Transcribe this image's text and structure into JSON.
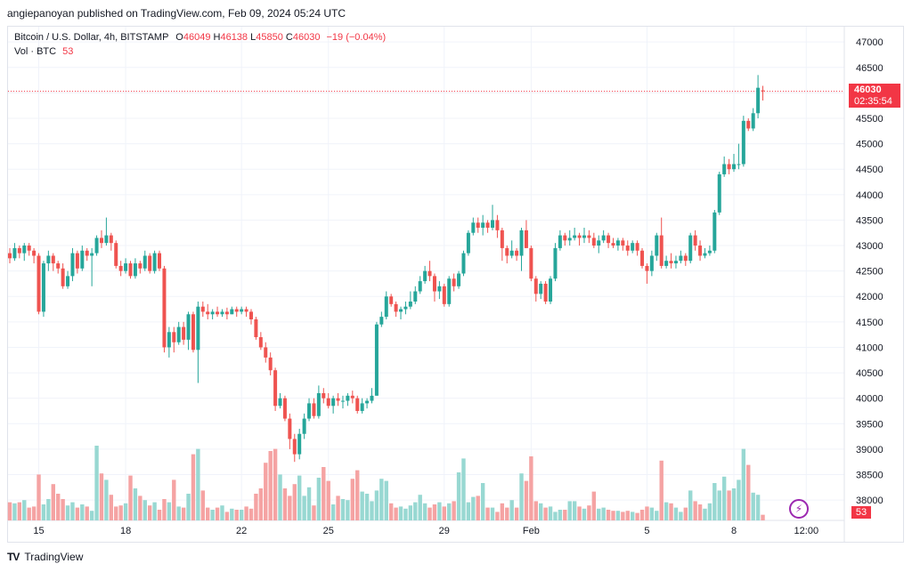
{
  "header": {
    "published_line": "angiepanoyan published on TradingView.com, Feb 09, 2024 05:24 UTC"
  },
  "legend": {
    "symbol": "Bitcoin / U.S. Dollar, 4h, BITSTAMP",
    "o_label": "O",
    "o_value": "46049",
    "h_label": "H",
    "h_value": "46138",
    "l_label": "L",
    "l_value": "45850",
    "c_label": "C",
    "c_value": "46030",
    "change": "−19 (−0.04%)",
    "vol_label": "Vol · BTC",
    "vol_value": "53"
  },
  "price_tag": {
    "price": "46030",
    "countdown": "02:35:54"
  },
  "vol_tag": "53",
  "footer": {
    "brand": "TradingView",
    "logo": "TV"
  },
  "colors": {
    "up": "#26a69a",
    "down": "#ef5350",
    "vol_up": "#98d8d2",
    "vol_down": "#f5a3a3",
    "accent": "#f23645"
  },
  "chart_data": {
    "type": "candlestick",
    "title": "Bitcoin / U.S. Dollar, 4h, BITSTAMP",
    "ylim": [
      37600,
      47300
    ],
    "y_ticks": [
      "47000",
      "46500",
      "46000",
      "45500",
      "45000",
      "44500",
      "44000",
      "43500",
      "43000",
      "42500",
      "42000",
      "41500",
      "41000",
      "40500",
      "40000",
      "39500",
      "39000",
      "38500",
      "38000"
    ],
    "y_tick_values": [
      47000,
      46500,
      46000,
      45500,
      45000,
      44500,
      44000,
      43500,
      43000,
      42500,
      42000,
      41500,
      41000,
      40500,
      40000,
      39500,
      39000,
      38500,
      38000
    ],
    "x_ticks": [
      {
        "label": "15",
        "index": 6
      },
      {
        "label": "18",
        "index": 24
      },
      {
        "label": "22",
        "index": 48
      },
      {
        "label": "25",
        "index": 66
      },
      {
        "label": "29",
        "index": 90
      },
      {
        "label": "Feb",
        "index": 108
      },
      {
        "label": "5",
        "index": 132
      },
      {
        "label": "8",
        "index": 150
      },
      {
        "label": "12:00",
        "index": 165
      }
    ],
    "vol_max": 1000,
    "last_close": 46030,
    "candles": [
      [
        42850,
        42750,
        42950,
        42650,
        170
      ],
      [
        42750,
        42950,
        43050,
        42700,
        160
      ],
      [
        42950,
        42850,
        43000,
        42750,
        170
      ],
      [
        42850,
        43000,
        43050,
        42700,
        190
      ],
      [
        43000,
        42900,
        43050,
        42800,
        120
      ],
      [
        42900,
        42800,
        42950,
        42650,
        130
      ],
      [
        42800,
        41700,
        42850,
        41650,
        430
      ],
      [
        41700,
        42650,
        42700,
        41600,
        150
      ],
      [
        42650,
        42800,
        42900,
        42500,
        200
      ],
      [
        42800,
        42650,
        42850,
        42500,
        340
      ],
      [
        42650,
        42550,
        42700,
        42450,
        250
      ],
      [
        42550,
        42200,
        42650,
        42150,
        200
      ],
      [
        42200,
        42400,
        42500,
        42150,
        140
      ],
      [
        42400,
        42850,
        42950,
        42300,
        170
      ],
      [
        42850,
        42550,
        42900,
        42450,
        120
      ],
      [
        42550,
        42900,
        43000,
        42500,
        150
      ],
      [
        42900,
        42800,
        42950,
        42700,
        130
      ],
      [
        42800,
        42850,
        42950,
        42200,
        90
      ],
      [
        42850,
        43150,
        43200,
        42800,
        700
      ],
      [
        43150,
        43050,
        43300,
        42950,
        440
      ],
      [
        43050,
        43200,
        43550,
        43000,
        380
      ],
      [
        43200,
        43050,
        43250,
        42900,
        240
      ],
      [
        43050,
        42600,
        43100,
        42550,
        130
      ],
      [
        42600,
        42500,
        42700,
        42400,
        140
      ],
      [
        42500,
        42650,
        42750,
        42450,
        160
      ],
      [
        42650,
        42400,
        42700,
        42350,
        420
      ],
      [
        42400,
        42650,
        42750,
        42350,
        300
      ],
      [
        42650,
        42550,
        42700,
        42450,
        230
      ],
      [
        42550,
        42800,
        42900,
        42500,
        190
      ],
      [
        42800,
        42500,
        42850,
        42450,
        140
      ],
      [
        42500,
        42850,
        42900,
        42450,
        170
      ],
      [
        42850,
        42550,
        42900,
        42500,
        100
      ],
      [
        42550,
        41000,
        42600,
        40900,
        200
      ],
      [
        41000,
        41300,
        41400,
        40800,
        170
      ],
      [
        41300,
        41100,
        41400,
        40900,
        380
      ],
      [
        41100,
        41400,
        41500,
        41050,
        130
      ],
      [
        41400,
        41150,
        41500,
        41050,
        120
      ],
      [
        41150,
        41650,
        41700,
        40950,
        250
      ],
      [
        41650,
        40950,
        41700,
        40900,
        620
      ],
      [
        40950,
        41800,
        41900,
        40300,
        670
      ],
      [
        41800,
        41700,
        41900,
        41600,
        280
      ],
      [
        41700,
        41650,
        41850,
        41550,
        120
      ],
      [
        41650,
        41700,
        41750,
        41550,
        100
      ],
      [
        41700,
        41650,
        41800,
        41600,
        120
      ],
      [
        41650,
        41700,
        41750,
        41600,
        140
      ],
      [
        41700,
        41650,
        41780,
        41550,
        80
      ],
      [
        41650,
        41750,
        41800,
        41650,
        110
      ],
      [
        41750,
        41700,
        41800,
        41600,
        100
      ],
      [
        41700,
        41750,
        41800,
        41650,
        100
      ],
      [
        41750,
        41700,
        41800,
        41600,
        130
      ],
      [
        41700,
        41550,
        41750,
        41450,
        110
      ],
      [
        41550,
        41200,
        41600,
        41150,
        250
      ],
      [
        41200,
        41000,
        41300,
        40950,
        300
      ],
      [
        41000,
        40800,
        41100,
        40700,
        540
      ],
      [
        40800,
        40550,
        40900,
        40450,
        650
      ],
      [
        40550,
        39850,
        40600,
        39750,
        670
      ],
      [
        39850,
        40000,
        40100,
        39800,
        430
      ],
      [
        40000,
        39600,
        40050,
        39550,
        300
      ],
      [
        39600,
        39200,
        39700,
        39000,
        230
      ],
      [
        39200,
        38900,
        39300,
        38750,
        340
      ],
      [
        38900,
        39300,
        39400,
        38800,
        420
      ],
      [
        39300,
        39600,
        39700,
        39200,
        230
      ],
      [
        39600,
        39900,
        40000,
        39550,
        310
      ],
      [
        39900,
        39650,
        40000,
        39600,
        140
      ],
      [
        39650,
        40100,
        40250,
        39600,
        400
      ],
      [
        40100,
        40000,
        40200,
        39900,
        500
      ],
      [
        40000,
        39850,
        40100,
        39800,
        370
      ],
      [
        39850,
        40000,
        40050,
        39700,
        150
      ],
      [
        40000,
        39950,
        40100,
        39850,
        230
      ],
      [
        39950,
        39950,
        40050,
        39800,
        200
      ],
      [
        39950,
        40050,
        40100,
        39850,
        190
      ],
      [
        40050,
        40000,
        40150,
        39900,
        390
      ],
      [
        40000,
        39750,
        40050,
        39700,
        470
      ],
      [
        39750,
        39900,
        40000,
        39700,
        270
      ],
      [
        39900,
        39950,
        40000,
        39800,
        250
      ],
      [
        39950,
        40050,
        40200,
        39900,
        180
      ],
      [
        40050,
        41450,
        41500,
        40050,
        280
      ],
      [
        41450,
        41600,
        41700,
        41400,
        390
      ],
      [
        41600,
        42000,
        42100,
        41550,
        370
      ],
      [
        42000,
        41850,
        42050,
        41800,
        160
      ],
      [
        41850,
        41700,
        41900,
        41600,
        120
      ],
      [
        41700,
        41750,
        41800,
        41550,
        130
      ],
      [
        41750,
        41800,
        41900,
        41650,
        110
      ],
      [
        41800,
        41900,
        42100,
        41750,
        140
      ],
      [
        41900,
        42100,
        42200,
        41850,
        170
      ],
      [
        42100,
        42300,
        42400,
        42050,
        240
      ],
      [
        42300,
        42500,
        42600,
        42250,
        160
      ],
      [
        42500,
        42400,
        42700,
        42300,
        120
      ],
      [
        42400,
        42100,
        42450,
        41900,
        150
      ],
      [
        42100,
        42200,
        42300,
        41950,
        170
      ],
      [
        42200,
        41850,
        42250,
        41800,
        130
      ],
      [
        41850,
        42350,
        42400,
        41800,
        160
      ],
      [
        42350,
        42200,
        42450,
        42100,
        180
      ],
      [
        42200,
        42450,
        42500,
        42150,
        450
      ],
      [
        42450,
        42850,
        42900,
        42400,
        580
      ],
      [
        42850,
        43250,
        43300,
        42800,
        170
      ],
      [
        43250,
        43450,
        43550,
        43200,
        220
      ],
      [
        43450,
        43350,
        43550,
        43250,
        230
      ],
      [
        43350,
        43450,
        43600,
        43200,
        350
      ],
      [
        43450,
        43350,
        43500,
        43250,
        120
      ],
      [
        43350,
        43500,
        43800,
        43300,
        120
      ],
      [
        43500,
        43300,
        43600,
        43150,
        80
      ],
      [
        43300,
        42950,
        43350,
        42700,
        160
      ],
      [
        42950,
        42800,
        43000,
        42650,
        120
      ],
      [
        42800,
        42900,
        43100,
        42750,
        190
      ],
      [
        42900,
        42800,
        42950,
        42700,
        120
      ],
      [
        42800,
        43300,
        43350,
        42500,
        440
      ],
      [
        43300,
        42950,
        43500,
        42950,
        370
      ],
      [
        42950,
        42350,
        43000,
        42300,
        600
      ],
      [
        42350,
        42050,
        42400,
        41900,
        180
      ],
      [
        42050,
        42250,
        42300,
        41950,
        160
      ],
      [
        42250,
        41900,
        42300,
        41850,
        120
      ],
      [
        41900,
        42350,
        42400,
        41850,
        130
      ],
      [
        42350,
        42950,
        43050,
        42300,
        80
      ],
      [
        42950,
        43200,
        43300,
        42900,
        100
      ],
      [
        43200,
        43100,
        43250,
        43000,
        100
      ],
      [
        43100,
        43150,
        43300,
        43000,
        180
      ],
      [
        43150,
        43200,
        43350,
        43100,
        180
      ],
      [
        43200,
        43150,
        43250,
        43000,
        130
      ],
      [
        43150,
        43200,
        43350,
        43050,
        110
      ],
      [
        43200,
        43150,
        43300,
        43050,
        140
      ],
      [
        43150,
        43000,
        43250,
        42950,
        270
      ],
      [
        43000,
        43100,
        43200,
        42850,
        110
      ],
      [
        43100,
        43200,
        43300,
        43050,
        120
      ],
      [
        43200,
        43050,
        43250,
        42950,
        100
      ],
      [
        43050,
        43000,
        43150,
        42950,
        90
      ],
      [
        43000,
        43100,
        43150,
        42900,
        90
      ],
      [
        43100,
        43000,
        43150,
        42900,
        80
      ],
      [
        43000,
        42900,
        43100,
        42800,
        90
      ],
      [
        42900,
        43050,
        43100,
        42850,
        80
      ],
      [
        43050,
        42900,
        43100,
        42800,
        70
      ],
      [
        42900,
        42600,
        42950,
        42550,
        100
      ],
      [
        42600,
        42500,
        42650,
        42250,
        130
      ],
      [
        42500,
        42800,
        42900,
        42400,
        120
      ],
      [
        42800,
        43200,
        43250,
        42700,
        90
      ],
      [
        43200,
        42600,
        43550,
        42550,
        560
      ],
      [
        42600,
        42700,
        42800,
        42550,
        170
      ],
      [
        42700,
        42650,
        42850,
        42550,
        160
      ],
      [
        42650,
        42700,
        42800,
        42550,
        120
      ],
      [
        42700,
        42800,
        42900,
        42650,
        80
      ],
      [
        42800,
        42700,
        42850,
        42600,
        120
      ],
      [
        42700,
        43200,
        43250,
        42650,
        280
      ],
      [
        43200,
        43000,
        43300,
        42900,
        180
      ],
      [
        43000,
        42800,
        43100,
        42700,
        150
      ],
      [
        42800,
        42850,
        42950,
        42750,
        110
      ],
      [
        42850,
        42900,
        43000,
        42800,
        160
      ],
      [
        42900,
        43650,
        43700,
        42850,
        350
      ],
      [
        43650,
        44400,
        44450,
        43600,
        280
      ],
      [
        44400,
        44600,
        44750,
        44350,
        410
      ],
      [
        44600,
        44500,
        44700,
        44400,
        280
      ],
      [
        44500,
        44600,
        44800,
        44450,
        300
      ],
      [
        44600,
        44600,
        45000,
        44500,
        380
      ],
      [
        44600,
        45450,
        45550,
        44550,
        670
      ],
      [
        45450,
        45300,
        45500,
        45250,
        520
      ],
      [
        45300,
        45600,
        45700,
        45250,
        260
      ],
      [
        45600,
        46100,
        46350,
        45500,
        240
      ],
      [
        46049,
        46030,
        46138,
        45850,
        53
      ]
    ]
  }
}
